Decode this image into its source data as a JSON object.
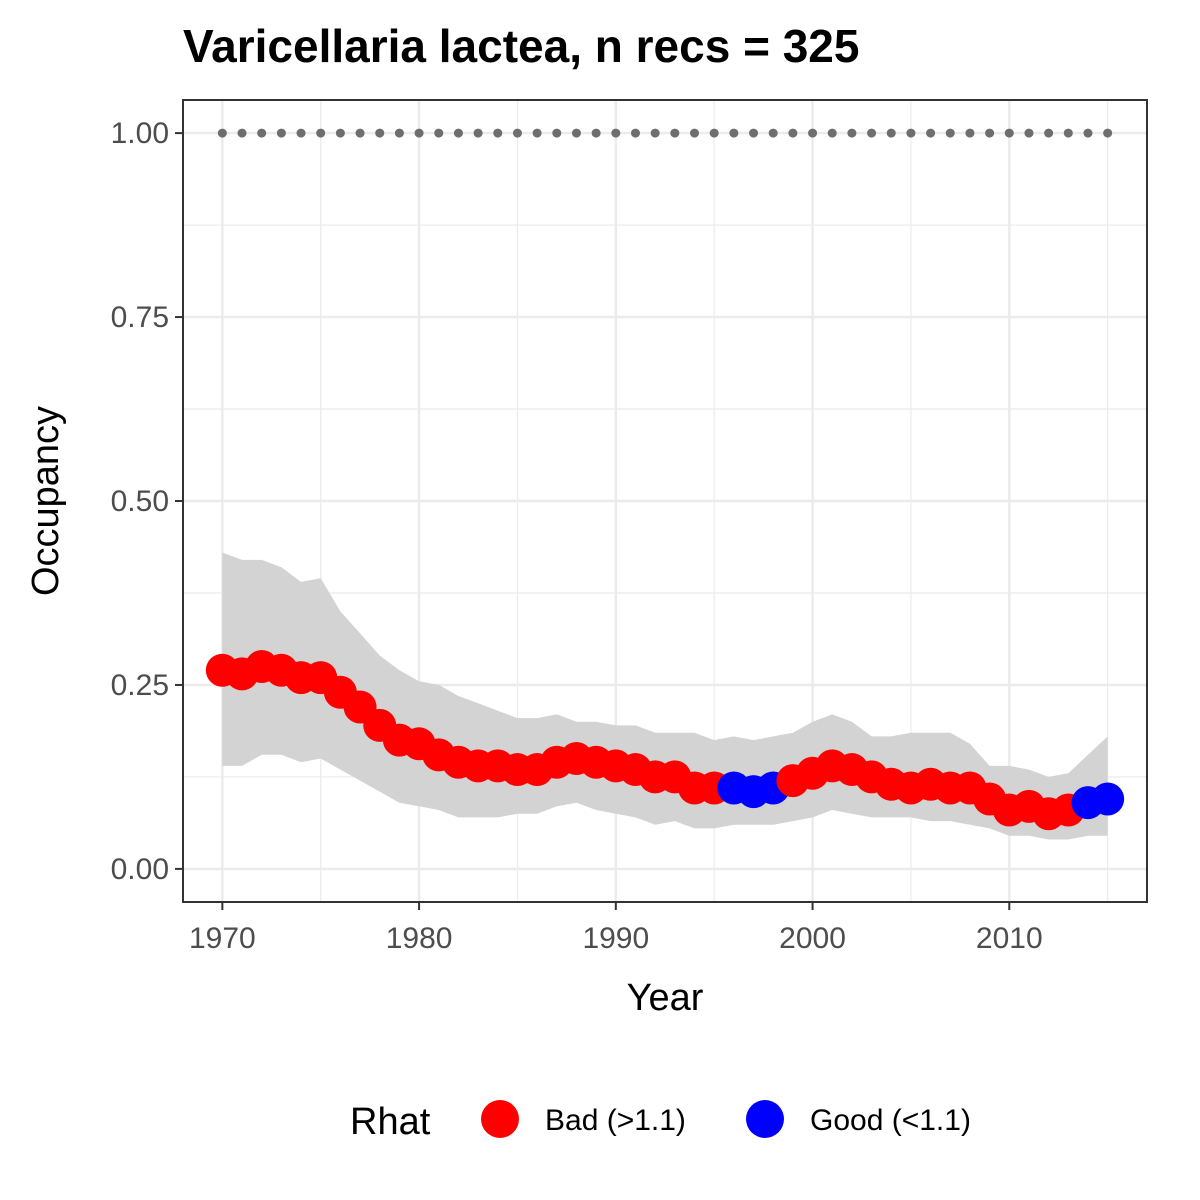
{
  "chart_data": {
    "type": "line",
    "title": "Varicellaria lactea, n recs = 325",
    "xlabel": "Year",
    "ylabel": "Occupancy",
    "xlim": [
      1968,
      2017
    ],
    "ylim": [
      -0.045,
      1.045
    ],
    "x_ticks": [
      1970,
      1980,
      1990,
      2000,
      2010
    ],
    "x_tick_labels": [
      "1970",
      "1980",
      "1990",
      "2000",
      "2010"
    ],
    "y_ticks": [
      0,
      0.25,
      0.5,
      0.75,
      1.0
    ],
    "y_tick_labels": [
      "0.00",
      "0.25",
      "0.50",
      "0.75",
      "1.00"
    ],
    "grid": true,
    "reference_line": {
      "y": 1.0,
      "style": "dotted",
      "x_range": [
        1970,
        2015
      ]
    },
    "x": [
      1970,
      1971,
      1972,
      1973,
      1974,
      1975,
      1976,
      1977,
      1978,
      1979,
      1980,
      1981,
      1982,
      1983,
      1984,
      1985,
      1986,
      1987,
      1988,
      1989,
      1990,
      1991,
      1992,
      1993,
      1994,
      1995,
      1996,
      1997,
      1998,
      1999,
      2000,
      2001,
      2002,
      2003,
      2004,
      2005,
      2006,
      2007,
      2008,
      2009,
      2010,
      2011,
      2012,
      2013,
      2014,
      2015
    ],
    "series": [
      {
        "type": "ribbon",
        "lower": [
          0.14,
          0.14,
          0.155,
          0.155,
          0.145,
          0.15,
          0.135,
          0.12,
          0.105,
          0.09,
          0.085,
          0.08,
          0.07,
          0.07,
          0.07,
          0.075,
          0.075,
          0.085,
          0.09,
          0.08,
          0.075,
          0.07,
          0.06,
          0.065,
          0.055,
          0.055,
          0.06,
          0.06,
          0.06,
          0.065,
          0.07,
          0.08,
          0.075,
          0.07,
          0.07,
          0.07,
          0.065,
          0.065,
          0.06,
          0.055,
          0.045,
          0.045,
          0.04,
          0.04,
          0.045,
          0.045
        ],
        "upper": [
          0.43,
          0.42,
          0.42,
          0.41,
          0.39,
          0.395,
          0.35,
          0.32,
          0.29,
          0.27,
          0.255,
          0.25,
          0.235,
          0.225,
          0.215,
          0.205,
          0.205,
          0.21,
          0.2,
          0.2,
          0.195,
          0.195,
          0.185,
          0.185,
          0.185,
          0.175,
          0.18,
          0.175,
          0.18,
          0.185,
          0.2,
          0.21,
          0.2,
          0.18,
          0.18,
          0.185,
          0.185,
          0.185,
          0.17,
          0.14,
          0.14,
          0.135,
          0.125,
          0.13,
          0.155,
          0.18
        ]
      },
      {
        "type": "points",
        "values": [
          0.27,
          0.265,
          0.275,
          0.27,
          0.26,
          0.26,
          0.24,
          0.22,
          0.195,
          0.175,
          0.17,
          0.155,
          0.145,
          0.14,
          0.14,
          0.135,
          0.135,
          0.145,
          0.15,
          0.145,
          0.14,
          0.135,
          0.125,
          0.125,
          0.11,
          0.11,
          0.11,
          0.105,
          0.11,
          0.12,
          0.13,
          0.14,
          0.135,
          0.125,
          0.115,
          0.11,
          0.115,
          0.11,
          0.11,
          0.095,
          0.08,
          0.085,
          0.075,
          0.08,
          0.09,
          0.095
        ],
        "rhat": [
          "Bad",
          "Bad",
          "Bad",
          "Bad",
          "Bad",
          "Bad",
          "Bad",
          "Bad",
          "Bad",
          "Bad",
          "Bad",
          "Bad",
          "Bad",
          "Bad",
          "Bad",
          "Bad",
          "Bad",
          "Bad",
          "Bad",
          "Bad",
          "Bad",
          "Bad",
          "Bad",
          "Bad",
          "Bad",
          "Bad",
          "Good",
          "Good",
          "Good",
          "Bad",
          "Bad",
          "Bad",
          "Bad",
          "Bad",
          "Bad",
          "Bad",
          "Bad",
          "Bad",
          "Bad",
          "Bad",
          "Bad",
          "Bad",
          "Bad",
          "Bad",
          "Good",
          "Good"
        ]
      }
    ],
    "legend": {
      "title": "Rhat",
      "placement": "bottom",
      "entries": [
        {
          "key": "Bad",
          "label": "Bad (>1.1)",
          "color": "#ff0000"
        },
        {
          "key": "Good",
          "label": "Good (<1.1)",
          "color": "#0000ff"
        }
      ]
    },
    "colors": {
      "ribbon": "#d3d3d3",
      "reference_line": "#6e6e6e",
      "panel_border": "#333333",
      "grid": "#ebebeb"
    }
  }
}
